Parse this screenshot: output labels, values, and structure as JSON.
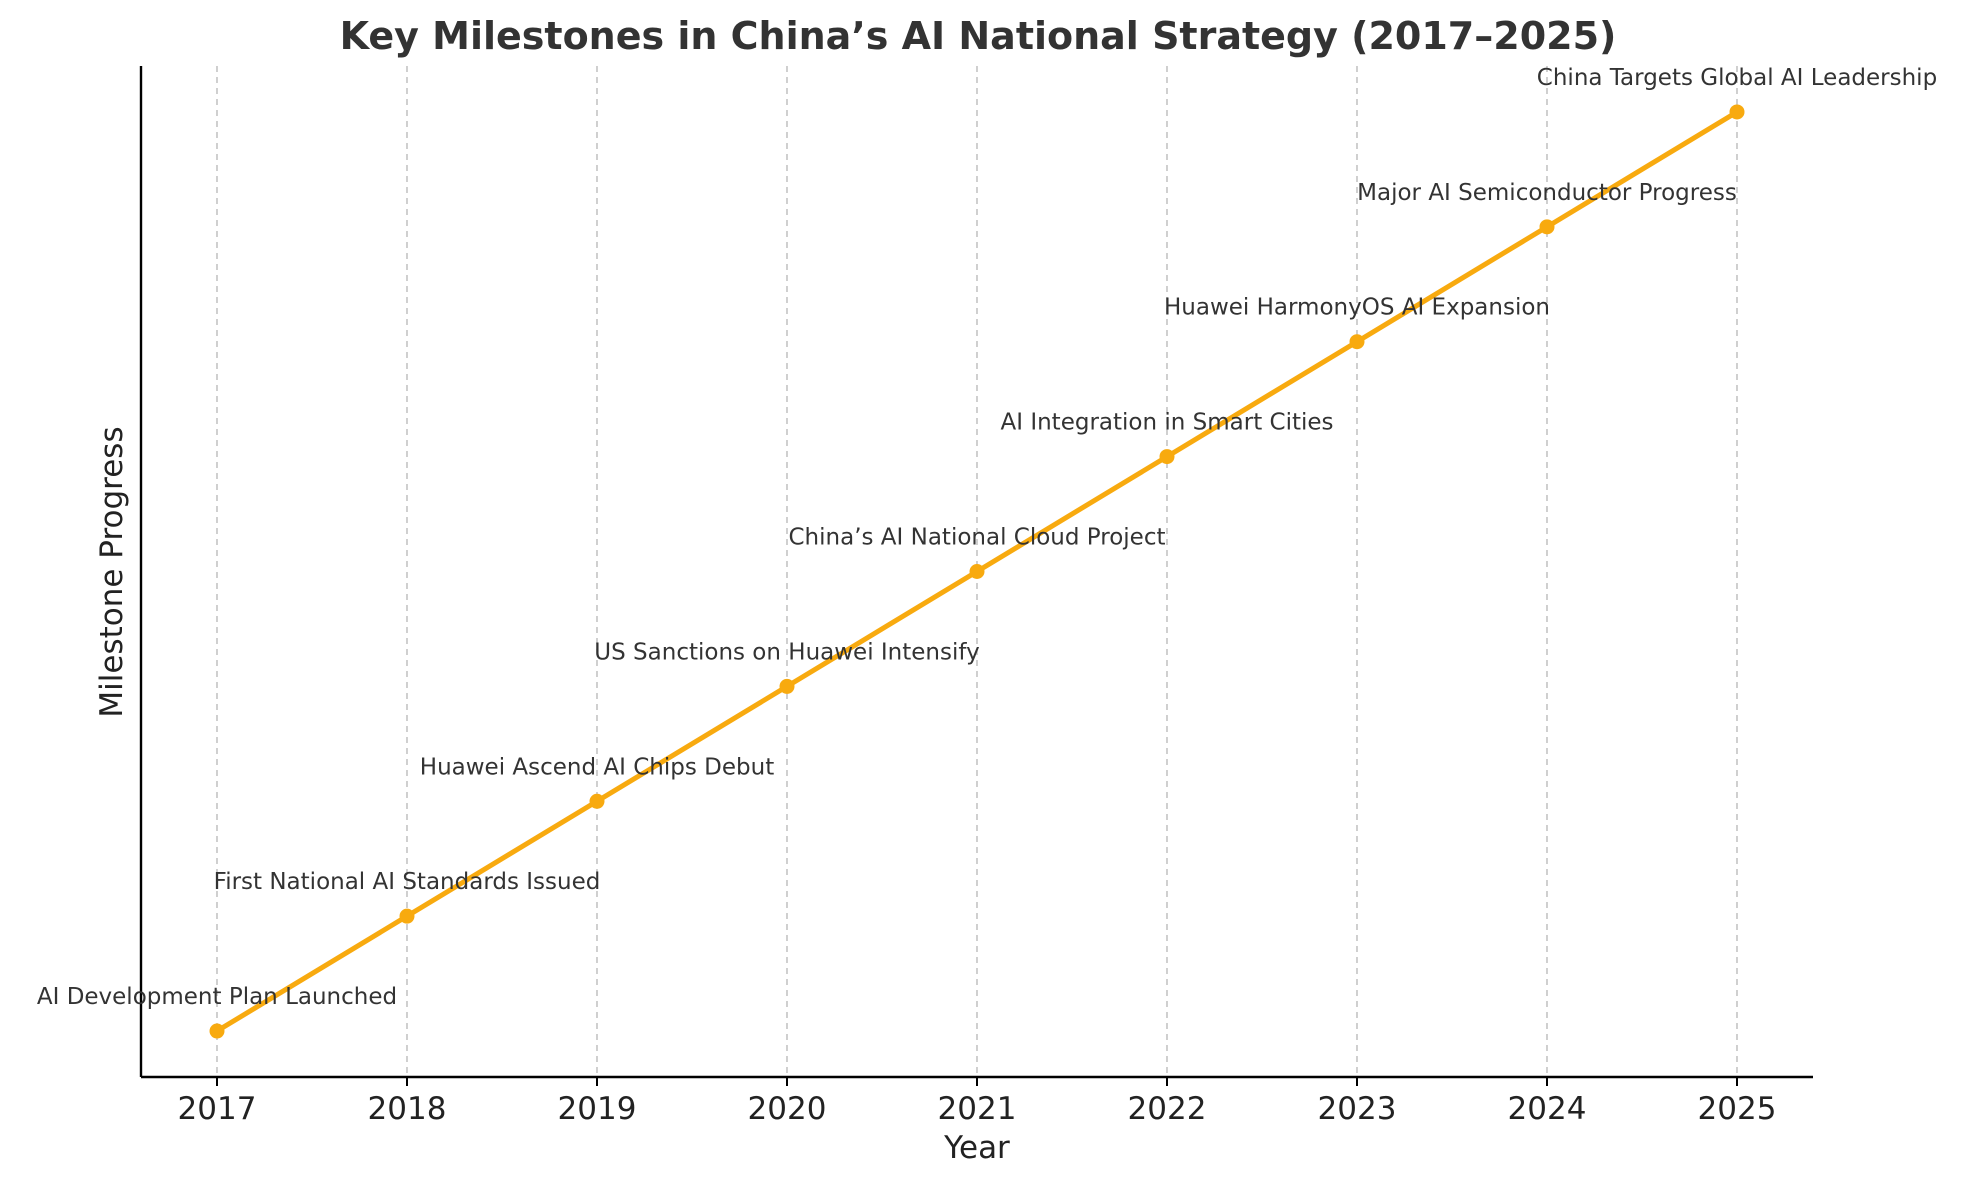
{
  "chart_data": {
    "type": "line",
    "title": "Key Milestones in China’s AI National Strategy (2017–2025)",
    "xlabel": "Year",
    "ylabel": "Milestone Progress",
    "x": [
      2017,
      2018,
      2019,
      2020,
      2021,
      2022,
      2023,
      2024,
      2025
    ],
    "y": [
      1,
      2,
      3,
      4,
      5,
      6,
      7,
      8,
      9
    ],
    "xlim": [
      2016.6,
      2025.4
    ],
    "ylim": [
      0.6,
      9.4
    ],
    "grid": "vertical dashed",
    "color": "#f8aa0f",
    "series": [
      {
        "values": [
          1,
          2,
          3,
          4,
          5,
          6,
          7,
          8,
          9
        ],
        "labels": [
          "AI Development Plan Launched",
          "First National AI Standards Issued",
          "Huawei Ascend AI Chips Debut",
          "US Sanctions on Huawei Intensify",
          "China’s AI National Cloud Project",
          "AI Integration in Smart Cities",
          "Huawei HarmonyOS AI Expansion",
          "Major AI Semiconductor Progress",
          "China Targets Global AI Leadership"
        ]
      }
    ],
    "tick_labels": [
      "2017",
      "2018",
      "2019",
      "2020",
      "2021",
      "2022",
      "2023",
      "2024",
      "2025"
    ]
  }
}
